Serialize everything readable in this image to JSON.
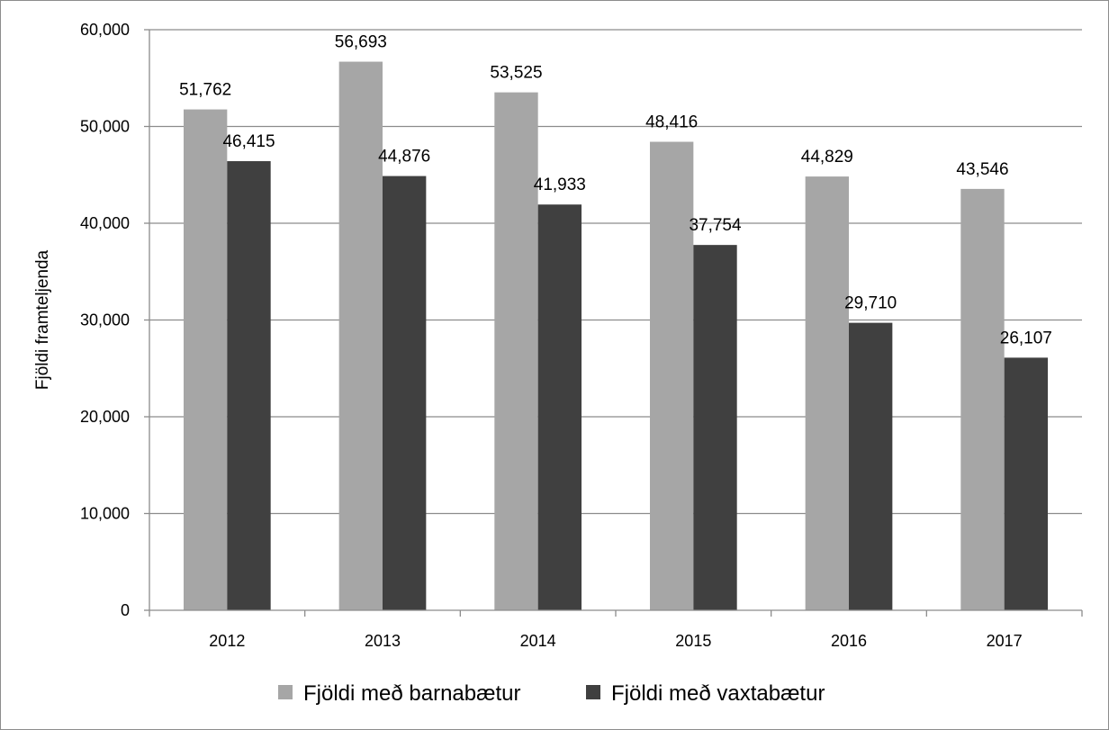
{
  "chart_data": {
    "type": "bar",
    "title": "",
    "xlabel": "",
    "ylabel": "Fjöldi framteljenda",
    "categories": [
      "2012",
      "2013",
      "2014",
      "2015",
      "2016",
      "2017"
    ],
    "series": [
      {
        "name": "Fjöldi með barnabætur",
        "color": "#a6a6a6",
        "values": [
          51762,
          56693,
          53525,
          48416,
          44829,
          43546
        ],
        "labels": [
          "51,762",
          "56,693",
          "53,525",
          "48,416",
          "44,829",
          "43,546"
        ]
      },
      {
        "name": "Fjöldi með vaxtabætur",
        "color": "#404040",
        "values": [
          46415,
          44876,
          41933,
          37754,
          29710,
          26107
        ],
        "labels": [
          "46,415",
          "44,876",
          "41,933",
          "37,754",
          "29,710",
          "26,107"
        ]
      }
    ],
    "ylim": [
      0,
      60000
    ],
    "yticks": [
      0,
      10000,
      20000,
      30000,
      40000,
      50000,
      60000
    ],
    "ytick_labels": [
      "0",
      "10,000",
      "20,000",
      "30,000",
      "40,000",
      "50,000",
      "60,000"
    ],
    "grid": true,
    "legend_position": "bottom"
  }
}
